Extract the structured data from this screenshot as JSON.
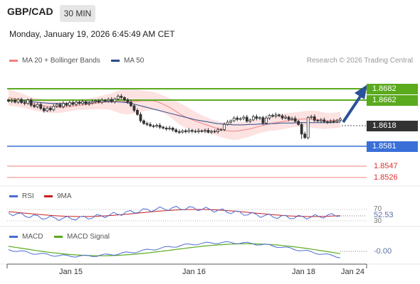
{
  "header": {
    "pair": "GBP/CAD",
    "timeframe": "30 MIN",
    "datetime": "Monday, January 19, 2026 6:45:49 AM CET",
    "copyright": "Research © 2026 Trading Central"
  },
  "legend": {
    "ma20": "MA 20 + Bollinger Bands",
    "ma50": "MA 50",
    "ma20_color": "#f08080",
    "ma50_color": "#2a4a8a"
  },
  "levels": {
    "r2": "1.8682",
    "r1": "1.8662",
    "last": "1.8618",
    "pivot": "1.8581",
    "s1": "1.8547",
    "s2": "1.8526",
    "green": "#5aaa1e",
    "blue": "#3a6fd8",
    "red": "#e03030",
    "dark": "#333333"
  },
  "rsi": {
    "label": "RSI",
    "ma_label": "9MA",
    "value": "52.53",
    "level_70": "70",
    "level_30": "30",
    "rsi_color": "#4a6cd4",
    "ma_color": "#c81e1e"
  },
  "macd": {
    "label": "MACD",
    "signal_label": "MACD Signal",
    "value": "-0.00",
    "macd_color": "#4a6cd4",
    "signal_color": "#5aaa1e"
  },
  "x_axis": {
    "labels": [
      "Jan 15",
      "Jan 16",
      "Jan 18",
      "Jan 24"
    ]
  },
  "chart_data": {
    "type": "candlestick",
    "ylim": [
      1.8505,
      1.87
    ],
    "closes": [
      1.8657,
      1.8659,
      1.8655,
      1.8661,
      1.8654,
      1.8652,
      1.866,
      1.8648,
      1.8645,
      1.865,
      1.8641,
      1.8636,
      1.8642,
      1.8638,
      1.8646,
      1.865,
      1.8645,
      1.8652,
      1.8648,
      1.8654,
      1.865,
      1.8655,
      1.8652,
      1.8656,
      1.8651,
      1.8653,
      1.8656,
      1.8658,
      1.8655,
      1.8659,
      1.8658,
      1.8661,
      1.8656,
      1.8662,
      1.8668,
      1.8665,
      1.866,
      1.8655,
      1.8647,
      1.8637,
      1.8628,
      1.8614,
      1.8608,
      1.8606,
      1.8603,
      1.8602,
      1.8604,
      1.86,
      1.8598,
      1.8596,
      1.8598,
      1.8594,
      1.859,
      1.8589,
      1.8592,
      1.859,
      1.8593,
      1.8591,
      1.859,
      1.8592,
      1.8591,
      1.8593,
      1.8589,
      1.8591,
      1.859,
      1.8594,
      1.8595,
      1.8606,
      1.8611,
      1.8614,
      1.862,
      1.8617,
      1.8619,
      1.8622,
      1.8613,
      1.8616,
      1.8623,
      1.8619,
      1.8621,
      1.8609,
      1.862,
      1.8626,
      1.8624,
      1.8627,
      1.8625,
      1.862,
      1.8622,
      1.8617,
      1.8619,
      1.8613,
      1.8606,
      1.8585,
      1.8577,
      1.8621,
      1.8623,
      1.8615,
      1.8614,
      1.8616,
      1.8612,
      1.8611,
      1.8613,
      1.8612,
      1.8615,
      1.8618
    ],
    "ma20": [
      1.8665,
      1.8663,
      1.866,
      1.8657,
      1.8653,
      1.865,
      1.8648,
      1.8646,
      1.8645,
      1.8644,
      1.8644,
      1.8645,
      1.8646,
      1.8648,
      1.8649,
      1.8651,
      1.8652,
      1.8654,
      1.8655,
      1.8656,
      1.8656,
      1.8656,
      1.8656,
      1.8656,
      1.8657,
      1.8658,
      1.8658,
      1.8658,
      1.8655,
      1.865,
      1.8644,
      1.8637,
      1.8629,
      1.8623,
      1.8618,
      1.8613,
      1.8609,
      1.8605,
      1.8601,
      1.8597,
      1.8594,
      1.8592,
      1.8591,
      1.8592,
      1.8594,
      1.8596,
      1.8599,
      1.8602,
      1.8605,
      1.8608,
      1.861,
      1.8612,
      1.8614,
      1.8616,
      1.8617,
      1.8618,
      1.8618,
      1.8617,
      1.8616,
      1.8614,
      1.8614,
      1.8615,
      1.8616
    ],
    "ma50": [
      1.866,
      1.8659,
      1.8658,
      1.8657,
      1.8656,
      1.8655,
      1.8654,
      1.8653,
      1.8652,
      1.8652,
      1.8652,
      1.8652,
      1.8653,
      1.8654,
      1.8654,
      1.8655,
      1.8655,
      1.8656,
      1.8656,
      1.8656,
      1.8656,
      1.8655,
      1.8654,
      1.8652,
      1.8649,
      1.8646,
      1.8643,
      1.864,
      1.8637,
      1.8634,
      1.8631,
      1.8628,
      1.8625,
      1.8622,
      1.8619,
      1.8616,
      1.8614,
      1.8612,
      1.861,
      1.8608,
      1.8607,
      1.8606,
      1.8605,
      1.8605,
      1.8605,
      1.8606,
      1.8606,
      1.8607,
      1.8607,
      1.8608,
      1.8608,
      1.8609,
      1.8609,
      1.8609,
      1.861,
      1.861,
      1.861,
      1.861,
      1.861,
      1.861,
      1.861,
      1.8611,
      1.8611
    ],
    "bb_width": [
      0.0018,
      0.0017,
      0.0016,
      0.0015,
      0.0014,
      0.0014,
      0.0014,
      0.0014,
      0.0014,
      0.0013,
      0.0012,
      0.0011,
      0.001,
      0.001,
      0.0011,
      0.0012,
      0.0013,
      0.0014,
      0.0016,
      0.0018,
      0.0022,
      0.0026,
      0.0028,
      0.0027,
      0.0025,
      0.0023,
      0.0021,
      0.002,
      0.0019,
      0.0019,
      0.002,
      0.0022,
      0.0024,
      0.0024,
      0.0022,
      0.002,
      0.0018,
      0.0017,
      0.0016,
      0.0016,
      0.0017,
      0.0018,
      0.0019,
      0.0019,
      0.0018,
      0.0017,
      0.0016,
      0.0015,
      0.0015,
      0.0016,
      0.0017,
      0.0017,
      0.0017,
      0.0016,
      0.0016,
      0.0017,
      0.0018,
      0.0019,
      0.0019,
      0.0018,
      0.0017,
      0.0017,
      0.0017
    ]
  }
}
